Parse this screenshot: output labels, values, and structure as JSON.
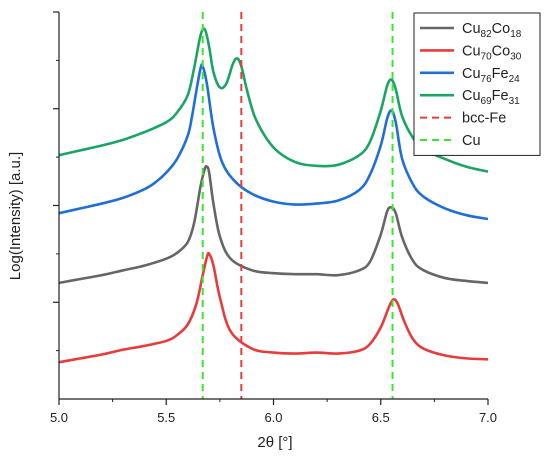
{
  "chart_data": {
    "type": "line",
    "xlabel": "2θ [°]",
    "ylabel": "Log(Intensity) [a.u.]",
    "xlim": [
      5.0,
      7.0
    ],
    "ylim": [
      0,
      4
    ],
    "x_ticks": [
      "5.0",
      "5.5",
      "6.0",
      "6.5",
      "7.0"
    ],
    "grid": false,
    "legend_position": "top-right",
    "series": [
      {
        "name": "Cu82Co18",
        "label_parts": [
          [
            "Cu",
            ""
          ],
          [
            "82",
            "sub"
          ],
          [
            "Co",
            ""
          ],
          [
            "18",
            "sub"
          ]
        ],
        "color": "#666666",
        "dash": "solid",
        "x": [
          5.0,
          5.1,
          5.2,
          5.3,
          5.4,
          5.5,
          5.55,
          5.6,
          5.63,
          5.66,
          5.68,
          5.69,
          5.7,
          5.72,
          5.75,
          5.8,
          5.9,
          6.0,
          6.1,
          6.2,
          6.3,
          6.4,
          6.45,
          6.5,
          6.53,
          6.55,
          6.57,
          6.6,
          6.65,
          6.7,
          6.8,
          6.9,
          7.0
        ],
        "y": [
          1.2,
          1.24,
          1.28,
          1.33,
          1.38,
          1.45,
          1.51,
          1.62,
          1.82,
          2.2,
          2.38,
          2.4,
          2.34,
          2.02,
          1.68,
          1.45,
          1.33,
          1.3,
          1.29,
          1.29,
          1.28,
          1.33,
          1.42,
          1.7,
          1.94,
          1.98,
          1.92,
          1.67,
          1.43,
          1.33,
          1.25,
          1.22,
          1.2
        ]
      },
      {
        "name": "Cu70Co30",
        "label_parts": [
          [
            "Cu",
            ""
          ],
          [
            "70",
            "sub"
          ],
          [
            "Co",
            ""
          ],
          [
            "30",
            "sub"
          ]
        ],
        "color": "#e83b3b",
        "dash": "solid",
        "x": [
          5.0,
          5.1,
          5.2,
          5.3,
          5.4,
          5.5,
          5.55,
          5.6,
          5.64,
          5.67,
          5.69,
          5.7,
          5.72,
          5.75,
          5.8,
          5.9,
          6.0,
          6.1,
          6.2,
          6.3,
          6.4,
          6.45,
          6.5,
          6.54,
          6.56,
          6.58,
          6.61,
          6.65,
          6.7,
          6.8,
          6.9,
          7.0
        ],
        "y": [
          0.38,
          0.42,
          0.46,
          0.51,
          0.55,
          0.6,
          0.66,
          0.77,
          0.98,
          1.28,
          1.47,
          1.5,
          1.38,
          1.05,
          0.7,
          0.52,
          0.48,
          0.47,
          0.48,
          0.47,
          0.5,
          0.57,
          0.74,
          0.96,
          1.03,
          0.98,
          0.8,
          0.62,
          0.52,
          0.45,
          0.42,
          0.41
        ]
      },
      {
        "name": "Cu76Fe24",
        "label_parts": [
          [
            "Cu",
            ""
          ],
          [
            "76",
            "sub"
          ],
          [
            "Fe",
            ""
          ],
          [
            "24",
            "sub"
          ]
        ],
        "color": "#1f6fd6",
        "dash": "solid",
        "x": [
          5.0,
          5.1,
          5.2,
          5.3,
          5.4,
          5.45,
          5.5,
          5.55,
          5.6,
          5.62,
          5.64,
          5.66,
          5.67,
          5.69,
          5.72,
          5.76,
          5.82,
          5.9,
          6.0,
          6.1,
          6.2,
          6.3,
          6.4,
          6.45,
          6.5,
          6.53,
          6.55,
          6.57,
          6.6,
          6.65,
          6.7,
          6.8,
          6.9,
          7.0
        ],
        "y": [
          1.92,
          1.97,
          2.02,
          2.08,
          2.17,
          2.24,
          2.34,
          2.48,
          2.72,
          2.92,
          3.18,
          3.42,
          3.44,
          3.25,
          2.8,
          2.45,
          2.25,
          2.12,
          2.04,
          2.01,
          2.02,
          2.05,
          2.16,
          2.32,
          2.62,
          2.9,
          2.98,
          2.86,
          2.48,
          2.22,
          2.09,
          1.97,
          1.9,
          1.86
        ]
      },
      {
        "name": "Cu69Fe31",
        "label_parts": [
          [
            "Cu",
            ""
          ],
          [
            "69",
            "sub"
          ],
          [
            "Fe",
            ""
          ],
          [
            "31",
            "sub"
          ]
        ],
        "color": "#1aa564",
        "dash": "solid",
        "x": [
          5.0,
          5.1,
          5.2,
          5.3,
          5.4,
          5.5,
          5.55,
          5.6,
          5.63,
          5.66,
          5.68,
          5.7,
          5.72,
          5.75,
          5.78,
          5.81,
          5.83,
          5.85,
          5.88,
          5.92,
          6.0,
          6.1,
          6.2,
          6.3,
          6.4,
          6.45,
          6.5,
          6.53,
          6.55,
          6.57,
          6.6,
          6.65,
          6.7,
          6.8,
          6.9,
          7.0
        ],
        "y": [
          2.52,
          2.57,
          2.62,
          2.68,
          2.76,
          2.86,
          2.96,
          3.14,
          3.42,
          3.76,
          3.82,
          3.64,
          3.38,
          3.22,
          3.26,
          3.46,
          3.52,
          3.44,
          3.16,
          2.88,
          2.6,
          2.45,
          2.41,
          2.42,
          2.52,
          2.66,
          2.98,
          3.24,
          3.3,
          3.2,
          2.92,
          2.7,
          2.58,
          2.48,
          2.4,
          2.35
        ]
      },
      {
        "name": "bcc-Fe",
        "label_parts": [
          [
            "bcc-Fe",
            ""
          ]
        ],
        "color": "#e83b3b",
        "dash": "dashed",
        "vline_x": 5.85
      },
      {
        "name": "Cu",
        "label_parts": [
          [
            "Cu",
            ""
          ]
        ],
        "color": "#37e82f",
        "dash": "dashed",
        "vline_x": [
          5.67,
          6.555
        ]
      }
    ]
  }
}
